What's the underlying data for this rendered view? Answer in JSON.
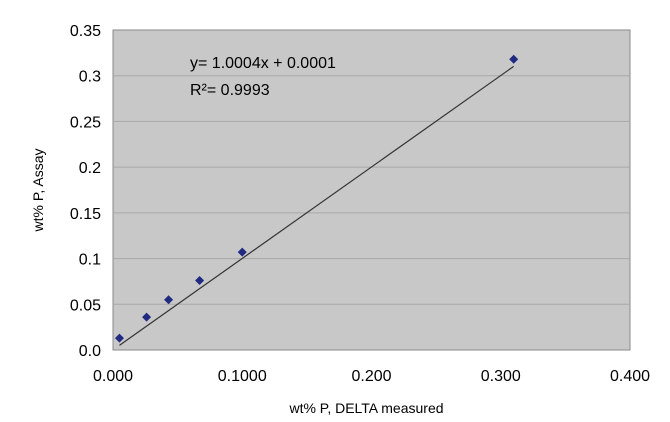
{
  "chart_data": {
    "type": "scatter",
    "title": "",
    "xlabel": "wt% P, DELTA measured",
    "ylabel": "wt% P, Assay",
    "xlim": [
      0,
      0.4
    ],
    "ylim": [
      0,
      0.35
    ],
    "x_ticks": [
      "0.000",
      "0.1000",
      "0.200",
      "0.300",
      "0.400"
    ],
    "y_ticks": [
      "0.0",
      "0.05",
      "0.1",
      "0.15",
      "0.2",
      "0.25",
      "0.3",
      "0.35"
    ],
    "grid": true,
    "series": [
      {
        "points": [
          {
            "x": 0.005,
            "y": 0.013
          },
          {
            "x": 0.026,
            "y": 0.036
          },
          {
            "x": 0.043,
            "y": 0.055
          },
          {
            "x": 0.067,
            "y": 0.076
          },
          {
            "x": 0.1,
            "y": 0.107
          },
          {
            "x": 0.31,
            "y": 0.318
          }
        ],
        "color": "#1f2a80"
      }
    ],
    "trendline": {
      "slope": 1.0004,
      "intercept": 0.0001,
      "x_range": [
        0.005,
        0.31
      ],
      "color": "#333333"
    },
    "annotations": {
      "equation": "y= 1.0004x + 0.0001",
      "r2": "R²= 0.9993"
    },
    "plot_background": "#c8c8c8",
    "grid_color": "#a8a8a8"
  }
}
